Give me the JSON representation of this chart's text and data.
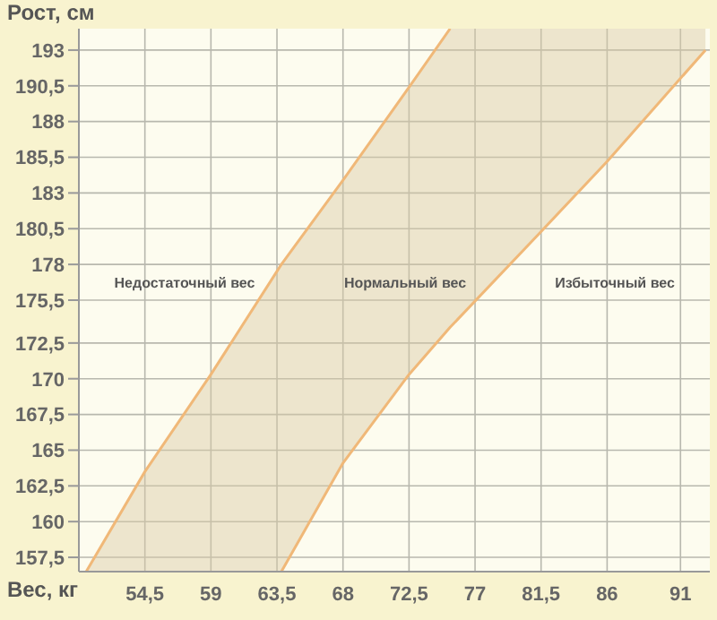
{
  "chart_data": {
    "type": "line",
    "xlabel": "Вес, кг",
    "ylabel": "Рост, см",
    "x": [
      50.5,
      54.5,
      59,
      63.8,
      68,
      72.5,
      75.3,
      81.5,
      86,
      92.7
    ],
    "series": [
      {
        "color": "#f0b878",
        "values": [
          156.5,
          163.5,
          170.3,
          178,
          183.9,
          190.4,
          194.5,
          null,
          null,
          null
        ],
        "lower": [
          156.5,
          156.5,
          156.5,
          156.5,
          164.1,
          170.3,
          173.6,
          180.3,
          185.2,
          193
        ],
        "upper": [
          156.5,
          163.5,
          170.3,
          178,
          183.9,
          190.4,
          194.5,
          194.5,
          194.5,
          194.5
        ]
      },
      {
        "color": "#f0b878",
        "values": [
          null,
          null,
          null,
          156.5,
          164.1,
          170.3,
          173.6,
          180.3,
          185.2,
          193
        ]
      }
    ],
    "xlim": [
      50,
      93
    ],
    "ylim": [
      156.5,
      194.5
    ],
    "xticks": [
      {
        "value": 54.5,
        "label": "54,5"
      },
      59,
      {
        "value": 63.5,
        "label": "63,5"
      },
      68,
      {
        "value": 72.5,
        "label": "72,5"
      },
      77,
      {
        "value": 81.5,
        "label": "81,5"
      },
      86,
      91
    ],
    "yticks": [
      {
        "value": 157.5,
        "label": "157,5"
      },
      160,
      {
        "value": 162.5,
        "label": "162,5"
      },
      165,
      {
        "value": 167.5,
        "label": "167,5"
      },
      170,
      {
        "value": 172.5,
        "label": "172,5"
      },
      {
        "value": 175.5,
        "label": "175,5"
      },
      178,
      {
        "value": 180.5,
        "label": "180,5"
      },
      183,
      {
        "value": 185.5,
        "label": "185,5"
      },
      188,
      {
        "value": 190.5,
        "label": "190,5"
      },
      193
    ],
    "annotations": [
      "Недостаточный вес",
      "Нормальный вес",
      "Избыточный вес"
    ],
    "grid": true
  }
}
